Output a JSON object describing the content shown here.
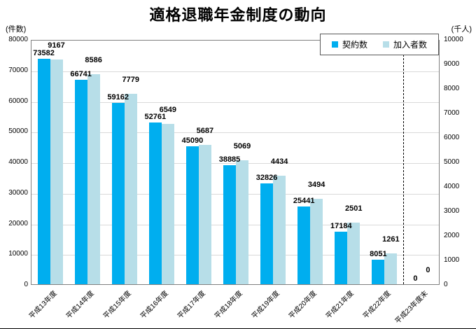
{
  "chart_data": {
    "type": "bar",
    "title": "適格退職年金制度の動向",
    "left_axis_unit": "(件数)",
    "right_axis_unit": "(千人)",
    "categories": [
      "平成13年度",
      "平成14年度",
      "平成15年度",
      "平成16年度",
      "平成17年度",
      "平成18年度",
      "平成19年度",
      "平成20年度",
      "平成21年度",
      "平成22年度",
      "平成23年度末"
    ],
    "series": [
      {
        "name": "契約数",
        "axis": "left",
        "color": "#00AEEF",
        "values": [
          73582,
          66741,
          59162,
          52761,
          45090,
          38885,
          32826,
          25441,
          17184,
          8051,
          0
        ]
      },
      {
        "name": "加入者数",
        "axis": "right",
        "color": "#B7DEE8",
        "values": [
          9167,
          8586,
          7779,
          6549,
          5687,
          5069,
          4434,
          3494,
          2501,
          1261,
          0
        ]
      }
    ],
    "left_axis": {
      "min": 0,
      "max": 80000,
      "step": 10000
    },
    "right_axis": {
      "min": 0,
      "max": 10000,
      "step": 1000
    },
    "grid": true,
    "legend_position": "top-right",
    "separator_line": {
      "style": "dashed",
      "before_category_index": 10
    },
    "data_labels": true
  }
}
